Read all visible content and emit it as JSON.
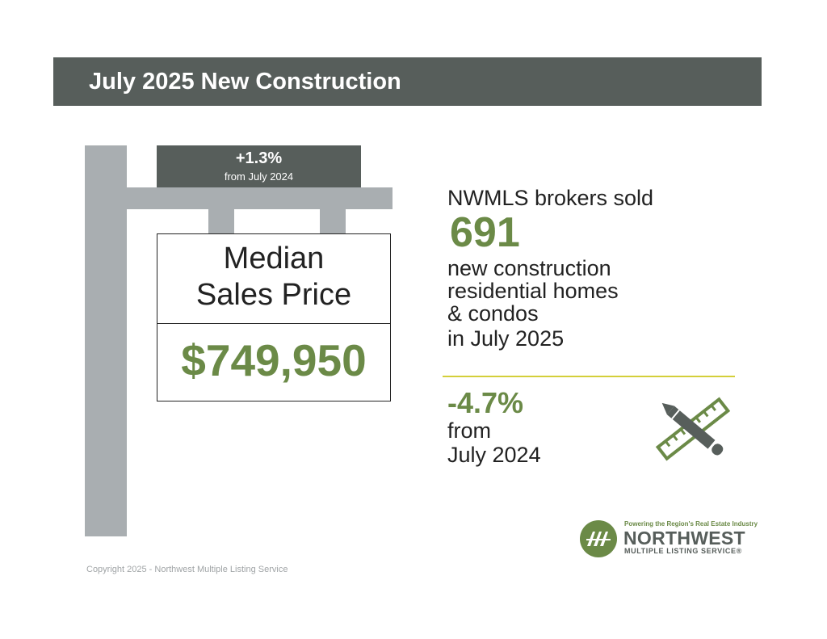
{
  "header": {
    "title": "July 2025 New Construction"
  },
  "sign": {
    "change_value": "+1.3%",
    "change_sub": "from July 2024",
    "label_line1": "Median",
    "label_line2": "Sales Price",
    "price": "$749,950"
  },
  "sales": {
    "intro": "NWMLS brokers sold",
    "count": "691",
    "desc_line1": "new construction",
    "desc_line2": "residential homes",
    "desc_line3": "& condos",
    "desc_line4": "in July 2025",
    "pct_change": "-4.7%",
    "from_line1": "from",
    "from_line2": "July 2024"
  },
  "logo": {
    "tagline": "Powering the Region's Real Estate Industry",
    "name": "NORTHWEST",
    "sub": "MULTIPLE LISTING SERVICE®"
  },
  "footer": {
    "copyright": "Copyright 2025 - Northwest Multiple Listing Service"
  },
  "icons": {
    "tools": "pencil-ruler-icon",
    "logo": "nwmls-logo-icon"
  },
  "colors": {
    "accent_green": "#6b8a47",
    "dark_gray": "#575e5b",
    "post_gray": "#a9aeb1",
    "divider_yellow": "#d4cf3a"
  }
}
